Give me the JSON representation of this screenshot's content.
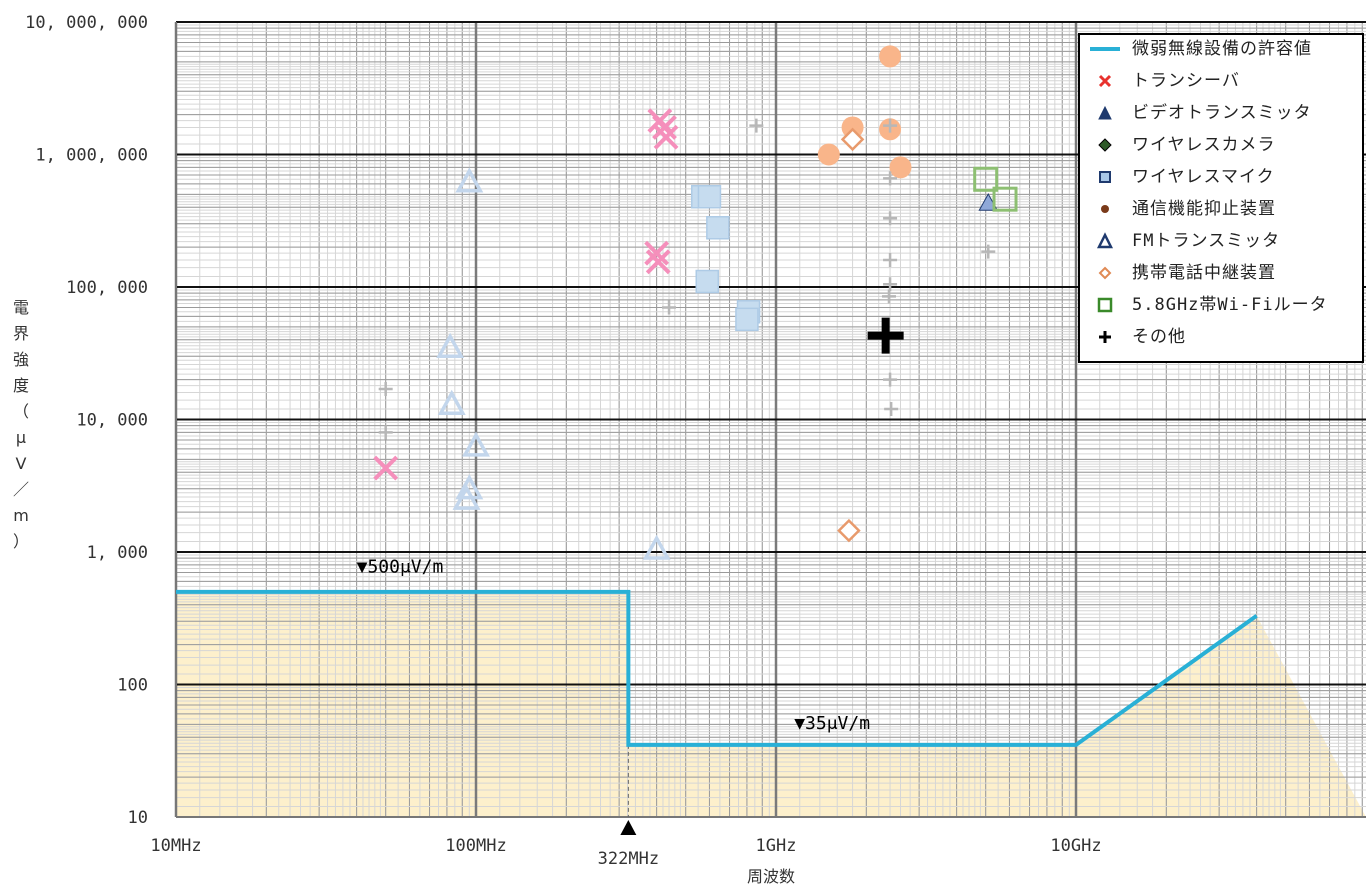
{
  "chart_data": {
    "type": "scatter",
    "xlabel": "周波数",
    "ylabel": "電界強度（μV／m）",
    "x_scale": "log",
    "y_scale": "log",
    "xlim_hz": [
      10000000,
      40000000000
    ],
    "ylim": [
      10,
      10000000
    ],
    "x_tick_labels": [
      {
        "value": 10000000,
        "label": "10MHz"
      },
      {
        "value": 100000000,
        "label": "100MHz"
      },
      {
        "value": 1000000000,
        "label": "1GHz"
      },
      {
        "value": 10000000000,
        "label": "10GHz"
      }
    ],
    "y_tick_labels": [
      {
        "value": 10,
        "label": "10"
      },
      {
        "value": 100,
        "label": "100"
      },
      {
        "value": 1000,
        "label": "1,000"
      },
      {
        "value": 10000,
        "label": "10,000"
      },
      {
        "value": 100000,
        "label": "100,000"
      },
      {
        "value": 1000000,
        "label": "1,000,000"
      },
      {
        "value": 10000000,
        "label": "10,000,000"
      }
    ],
    "marker_322": {
      "x": 322000000,
      "label": "322MHz"
    },
    "annotations": [
      {
        "text": "▼500μV/m",
        "x": 40000000,
        "y": 700
      },
      {
        "text": "▼35μV/m",
        "x": 1150000000,
        "y": 46
      }
    ],
    "limit_line": {
      "name": "微弱無線設備の許容値",
      "color": "#29b0d6",
      "points": [
        [
          10000000,
          500
        ],
        [
          322000000,
          500
        ],
        [
          322000000,
          35
        ],
        [
          10000000000,
          35
        ],
        [
          40000000000,
          330
        ]
      ]
    },
    "series": [
      {
        "name": "トランシーバ",
        "marker": "x",
        "color": "#f58fbb",
        "points": [
          [
            50000000,
            4300
          ],
          [
            410000000,
            1800000
          ],
          [
            425000000,
            1600000
          ],
          [
            430000000,
            1350000
          ],
          [
            400000000,
            180000
          ],
          [
            405000000,
            155000
          ]
        ]
      },
      {
        "name": "ビデオトランスミッタ",
        "marker": "triangle-filled",
        "color": "#8fa8d8",
        "points": [
          [
            5100000000,
            430000
          ]
        ]
      },
      {
        "name": "ワイヤレスカメラ",
        "marker": "diamond-filled",
        "color": "#2d5a27",
        "points": []
      },
      {
        "name": "ワイヤレスマイク",
        "marker": "square",
        "color": "#c6dcef",
        "points": [
          [
            570000000,
            480000
          ],
          [
            600000000,
            480000
          ],
          [
            640000000,
            280000
          ],
          [
            590000000,
            110000
          ],
          [
            810000000,
            65000
          ],
          [
            800000000,
            57000
          ]
        ]
      },
      {
        "name": "通信機能抑止装置",
        "marker": "circle",
        "color": "#f9b58a",
        "points": [
          [
            1500000000,
            1000000
          ],
          [
            1800000000,
            1600000
          ],
          [
            2400000000,
            5500000
          ],
          [
            2400000000,
            1550000
          ],
          [
            2600000000,
            800000
          ]
        ]
      },
      {
        "name": "FMトランスミッタ",
        "marker": "triangle",
        "color": "#c3d6ec",
        "points": [
          [
            95000000,
            620000
          ],
          [
            82000000,
            35000
          ],
          [
            83000000,
            13000
          ],
          [
            100000000,
            6300
          ],
          [
            95000000,
            3000
          ],
          [
            93000000,
            2500
          ],
          [
            400000000,
            1050
          ]
        ]
      },
      {
        "name": "携帯電話中継装置",
        "marker": "diamond",
        "color": "#e89a6c",
        "points": [
          [
            1800000000,
            1300000
          ],
          [
            1750000000,
            1450
          ]
        ]
      },
      {
        "name": "5.8GHz帯Wi-Fiルータ",
        "marker": "square-open",
        "color": "#8dbf72",
        "points": [
          [
            5000000000,
            650000
          ],
          [
            5800000000,
            460000
          ]
        ]
      },
      {
        "name": "その他",
        "marker": "plus",
        "color": "#b7b7b7",
        "points": [
          [
            50000000,
            17000
          ],
          [
            50000000,
            8000
          ],
          [
            440000000,
            70000
          ],
          [
            860000000,
            1650000
          ],
          [
            2400000000,
            1650000
          ],
          [
            2400000000,
            660000
          ],
          [
            2400000000,
            330000
          ],
          [
            2400000000,
            160000
          ],
          [
            2400000000,
            105000
          ],
          [
            2380000000,
            85000
          ],
          [
            2400000000,
            20000
          ],
          [
            2420000000,
            12000
          ],
          [
            5100000000,
            185000
          ]
        ],
        "highlight": {
          "point": [
            2320000000,
            43000
          ],
          "color": "#000000"
        }
      }
    ]
  }
}
